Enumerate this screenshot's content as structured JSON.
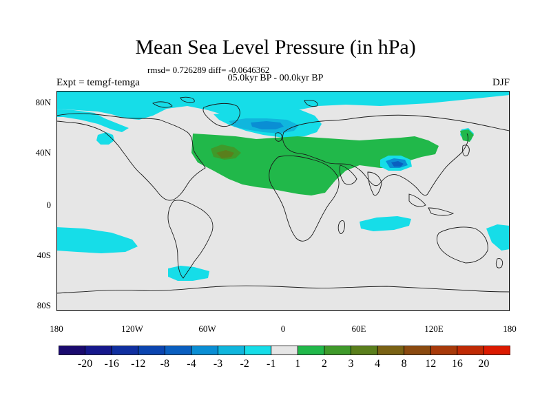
{
  "title": "Mean Sea Level Pressure (in hPa)",
  "stats": "rmsd= 0.726289 diff= -0.0646362",
  "period": "05.0kyr BP - 00.0kyr BP",
  "experiment": "Expt = temgf-temga",
  "season": "DJF",
  "lat_labels": [
    "80N",
    "40N",
    "0",
    "40S",
    "80S"
  ],
  "lon_labels": [
    "180",
    "120W",
    "60W",
    "0",
    "60E",
    "120E",
    "180"
  ],
  "colorbar": {
    "labels": [
      "-20",
      "-16",
      "-12",
      "-8",
      "-4",
      "-3",
      "-2",
      "-1",
      "1",
      "2",
      "3",
      "4",
      "8",
      "12",
      "16",
      "20"
    ],
    "colors": [
      "#1a0a6e",
      "#16188c",
      "#102fa0",
      "#0b45b0",
      "#0a5fc0",
      "#0a8ed4",
      "#10b6dd",
      "#16dde8",
      "#e6e6e6",
      "#21b84a",
      "#3f9a2a",
      "#5a7f1c",
      "#7a6214",
      "#8b4a10",
      "#a83a0a",
      "#c02a04",
      "#dc1a00"
    ]
  },
  "map_colors": {
    "background": "#e6e6e6",
    "coast": "#1a1a1a",
    "neg_weak": "#16dde8",
    "neg_mid": "#10b6dd",
    "neg_strong": "#0a8ed4",
    "neg_stronger": "#0a5fc0",
    "pos_weak": "#21b84a",
    "pos_mid": "#3f9a2a",
    "pos_strong": "#5a7f1c",
    "pos_stronger": "#7a6214"
  }
}
